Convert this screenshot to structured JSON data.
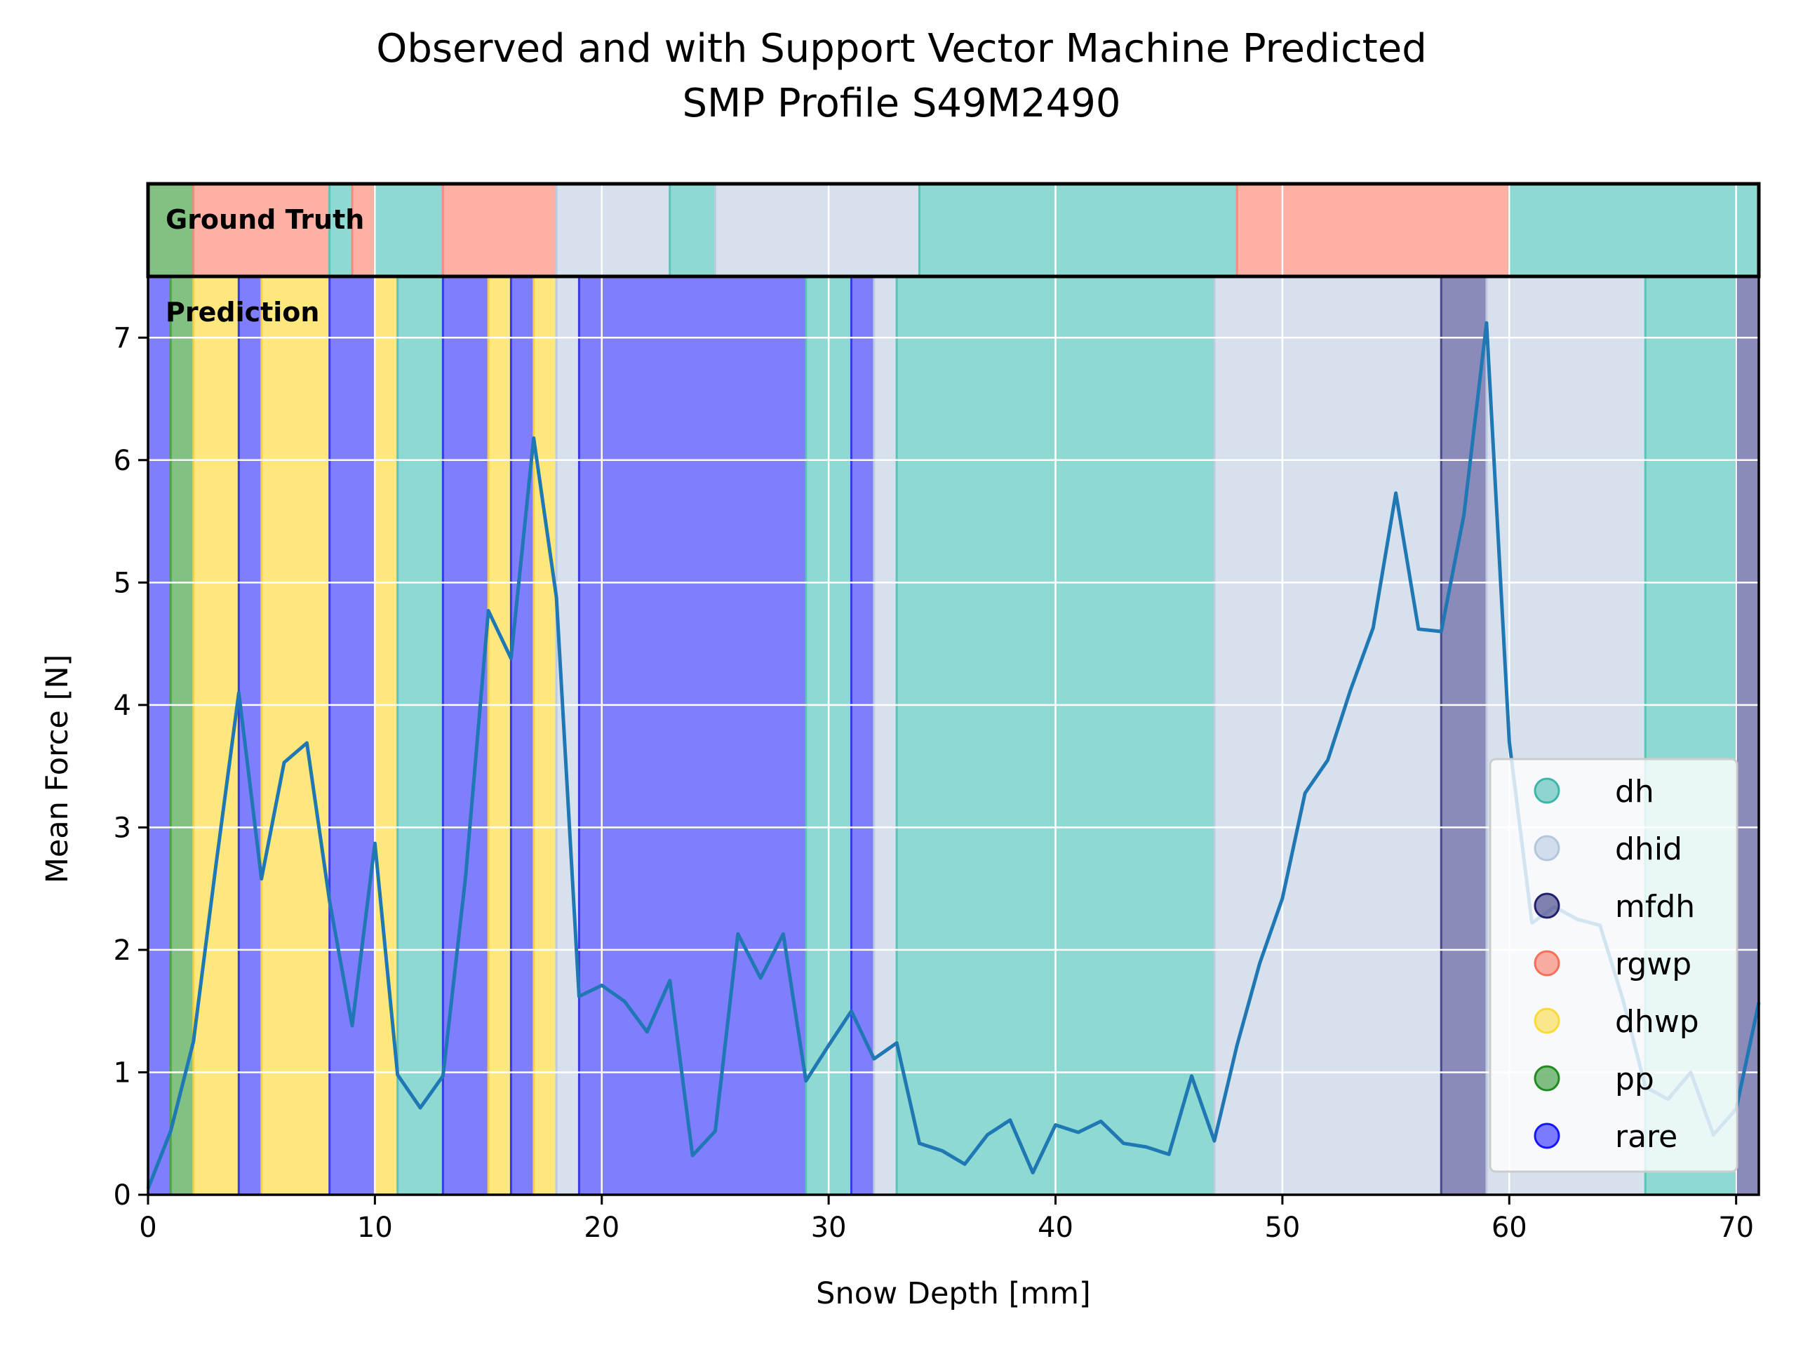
{
  "chart_data": {
    "type": "line",
    "title": "Observed and with Support Vector Machine Predicted",
    "subtitle": "SMP Profile S49M2490",
    "xlabel": "Snow Depth [mm]",
    "ylabel": "Mean Force [N]",
    "xlim": [
      0,
      71
    ],
    "ylim": [
      0,
      7.5
    ],
    "grid": true,
    "x_ticks": [
      0,
      10,
      20,
      30,
      40,
      50,
      60,
      70
    ],
    "y_ticks": [
      0,
      1,
      2,
      3,
      4,
      5,
      6,
      7
    ],
    "panel_labels": {
      "ground_truth": "Ground Truth",
      "prediction": "Prediction"
    },
    "legend_position": "lower-right",
    "legend": [
      {
        "label": "dh",
        "color": "#3cb6a9"
      },
      {
        "label": "dhid",
        "color": "#b4c6de"
      },
      {
        "label": "mfdh",
        "color": "#1f1f6e"
      },
      {
        "label": "rgwp",
        "color": "#fa6e55"
      },
      {
        "label": "dhwp",
        "color": "#fcd933"
      },
      {
        "label": "pp",
        "color": "#1e8c1e"
      },
      {
        "label": "rare",
        "color": "#1414ff"
      }
    ],
    "class_colors": {
      "dh": "#8fd9d3",
      "dhid": "#d7e1ed",
      "mfdh": "#8b8bbb",
      "rgwp": "#feb0a4",
      "dhwp": "#fee87e",
      "pp": "#82c182",
      "rare": "#7f7ffe"
    },
    "class_edge_colors": {
      "dh": "#5cc3b9",
      "dhid": "#bccbe0",
      "mfdh": "#4a4a8a",
      "rgwp": "#f48d7b",
      "dhwp": "#f4d04a",
      "pp": "#4fa54f",
      "rare": "#3a3ae8"
    },
    "line_color": "#1f77b4",
    "ground_truth_segments": [
      {
        "start": 0,
        "end": 2,
        "class": "pp"
      },
      {
        "start": 2,
        "end": 8,
        "class": "rgwp"
      },
      {
        "start": 8,
        "end": 9,
        "class": "dh"
      },
      {
        "start": 9,
        "end": 10,
        "class": "rgwp"
      },
      {
        "start": 10,
        "end": 13,
        "class": "dh"
      },
      {
        "start": 13,
        "end": 18,
        "class": "rgwp"
      },
      {
        "start": 18,
        "end": 23,
        "class": "dhid"
      },
      {
        "start": 23,
        "end": 25,
        "class": "dh"
      },
      {
        "start": 25,
        "end": 34,
        "class": "dhid"
      },
      {
        "start": 34,
        "end": 48,
        "class": "dh"
      },
      {
        "start": 48,
        "end": 60,
        "class": "rgwp"
      },
      {
        "start": 60,
        "end": 71,
        "class": "dh"
      }
    ],
    "prediction_segments": [
      {
        "start": 0,
        "end": 1,
        "class": "rare"
      },
      {
        "start": 1,
        "end": 2,
        "class": "pp"
      },
      {
        "start": 2,
        "end": 4,
        "class": "dhwp"
      },
      {
        "start": 4,
        "end": 5,
        "class": "rare"
      },
      {
        "start": 5,
        "end": 8,
        "class": "dhwp"
      },
      {
        "start": 8,
        "end": 10,
        "class": "rare"
      },
      {
        "start": 10,
        "end": 11,
        "class": "dhwp"
      },
      {
        "start": 11,
        "end": 13,
        "class": "dh"
      },
      {
        "start": 13,
        "end": 15,
        "class": "rare"
      },
      {
        "start": 15,
        "end": 16,
        "class": "dhwp"
      },
      {
        "start": 16,
        "end": 17,
        "class": "rare"
      },
      {
        "start": 17,
        "end": 18,
        "class": "dhwp"
      },
      {
        "start": 18,
        "end": 19,
        "class": "dhid"
      },
      {
        "start": 19,
        "end": 29,
        "class": "rare"
      },
      {
        "start": 29,
        "end": 31,
        "class": "dh"
      },
      {
        "start": 31,
        "end": 32,
        "class": "rare"
      },
      {
        "start": 32,
        "end": 33,
        "class": "dhid"
      },
      {
        "start": 33,
        "end": 47,
        "class": "dh"
      },
      {
        "start": 47,
        "end": 57,
        "class": "dhid"
      },
      {
        "start": 57,
        "end": 59,
        "class": "mfdh"
      },
      {
        "start": 59,
        "end": 66,
        "class": "dhid"
      },
      {
        "start": 66,
        "end": 70,
        "class": "dh"
      },
      {
        "start": 70,
        "end": 71,
        "class": "mfdh"
      }
    ],
    "series": [
      {
        "x": [
          0,
          1,
          2,
          3,
          4,
          5,
          6,
          7,
          8,
          9,
          10,
          11,
          12,
          13,
          14,
          15,
          16,
          17,
          18,
          19,
          20,
          21,
          22,
          23,
          24,
          25,
          26,
          27,
          28,
          29,
          30,
          31,
          32,
          33,
          34,
          35,
          36,
          37,
          38,
          39,
          40,
          41,
          42,
          43,
          44,
          45,
          46,
          47,
          48,
          49,
          50,
          51,
          52,
          53,
          54,
          55,
          56,
          57,
          58,
          59,
          60,
          61,
          62,
          63,
          64,
          65,
          66,
          67,
          68,
          69,
          70,
          71
        ],
        "y": [
          0.05,
          0.52,
          1.25,
          2.7,
          4.1,
          2.58,
          3.53,
          3.69,
          2.4,
          1.38,
          2.87,
          0.98,
          0.71,
          0.97,
          2.6,
          4.77,
          4.38,
          6.18,
          4.88,
          1.62,
          1.71,
          1.58,
          1.33,
          1.75,
          0.32,
          0.52,
          2.13,
          1.77,
          2.13,
          0.93,
          1.22,
          1.5,
          1.11,
          1.24,
          0.42,
          0.36,
          0.25,
          0.49,
          0.61,
          0.18,
          0.57,
          0.51,
          0.6,
          0.42,
          0.39,
          0.33,
          0.97,
          0.44,
          1.22,
          1.89,
          2.42,
          3.28,
          3.55,
          4.12,
          4.63,
          5.73,
          4.62,
          4.6,
          5.55,
          7.12,
          3.7,
          2.22,
          2.35,
          2.25,
          2.2,
          1.6,
          0.88,
          0.78,
          1.0,
          0.49,
          0.7,
          1.57
        ]
      }
    ]
  }
}
